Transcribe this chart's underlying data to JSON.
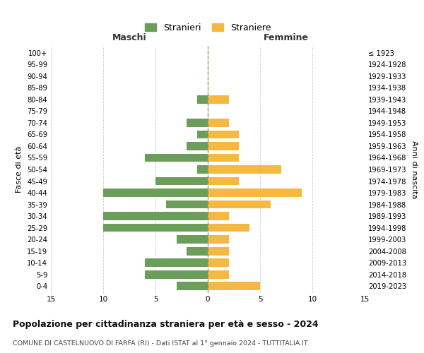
{
  "age_groups": [
    "0-4",
    "5-9",
    "10-14",
    "15-19",
    "20-24",
    "25-29",
    "30-34",
    "35-39",
    "40-44",
    "45-49",
    "50-54",
    "55-59",
    "60-64",
    "65-69",
    "70-74",
    "75-79",
    "80-84",
    "85-89",
    "90-94",
    "95-99",
    "100+"
  ],
  "birth_years": [
    "2019-2023",
    "2014-2018",
    "2009-2013",
    "2004-2008",
    "1999-2003",
    "1994-1998",
    "1989-1993",
    "1984-1988",
    "1979-1983",
    "1974-1978",
    "1969-1973",
    "1964-1968",
    "1959-1963",
    "1954-1958",
    "1949-1953",
    "1944-1948",
    "1939-1943",
    "1934-1938",
    "1929-1933",
    "1924-1928",
    "≤ 1923"
  ],
  "maschi": [
    3,
    6,
    6,
    2,
    3,
    10,
    10,
    4,
    10,
    5,
    1,
    6,
    2,
    1,
    2,
    0,
    1,
    0,
    0,
    0,
    0
  ],
  "femmine": [
    5,
    2,
    2,
    2,
    2,
    4,
    2,
    6,
    9,
    3,
    7,
    3,
    3,
    3,
    2,
    0,
    2,
    0,
    0,
    0,
    0
  ],
  "color_maschi": "#6a9e5a",
  "color_femmine": "#f5b942",
  "xlim": 15,
  "title": "Popolazione per cittadinanza straniera per età e sesso - 2024",
  "subtitle": "COMUNE DI CASTELNUOVO DI FARFA (RI) - Dati ISTAT al 1° gennaio 2024 - TUTTITALIA.IT",
  "ylabel_left": "Fasce di età",
  "ylabel_right": "Anni di nascita",
  "legend_maschi": "Stranieri",
  "legend_femmine": "Straniere",
  "header_maschi": "Maschi",
  "header_femmine": "Femmine",
  "bg_color": "#ffffff",
  "grid_color": "#cccccc"
}
